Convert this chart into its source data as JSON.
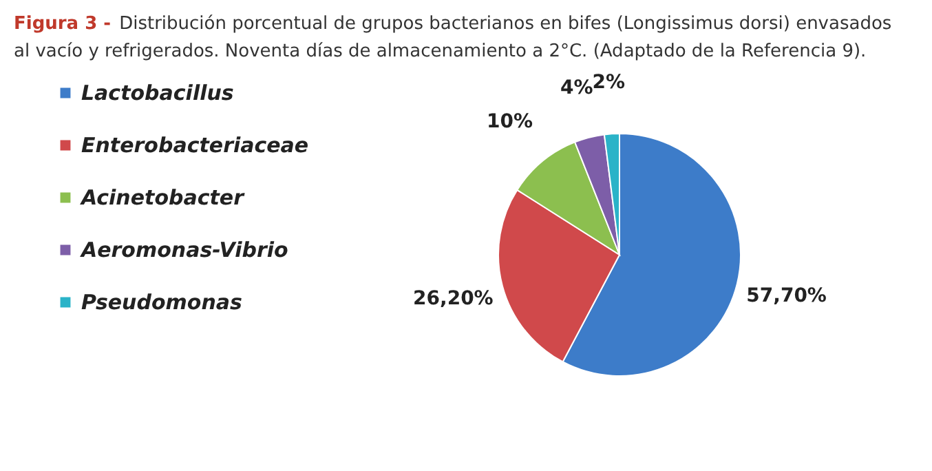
{
  "chart_data": {
    "type": "pie",
    "title": "Figura 3 -",
    "subtitle": "Distribución porcentual de grupos bacterianos en bifes (Longissimus dorsi) envasados al vacío y refrigerados. Noventa días de almacenamiento a 2°C. (Adaptado de la Referencia 9).",
    "categories": [
      "Lactobacillus",
      "Enterobacteriaceae",
      "Acinetobacter",
      "Aeromonas-Vibrio",
      "Pseudomonas"
    ],
    "values": [
      57.7,
      26.2,
      10,
      4,
      2
    ],
    "value_labels": [
      "57,70%",
      "26,20%",
      "10%",
      "4%",
      "2%"
    ],
    "colors": [
      "#3d7cc9",
      "#d0494b",
      "#8cbf4f",
      "#7d5ea8",
      "#2ab3c8"
    ],
    "legend": "left"
  }
}
